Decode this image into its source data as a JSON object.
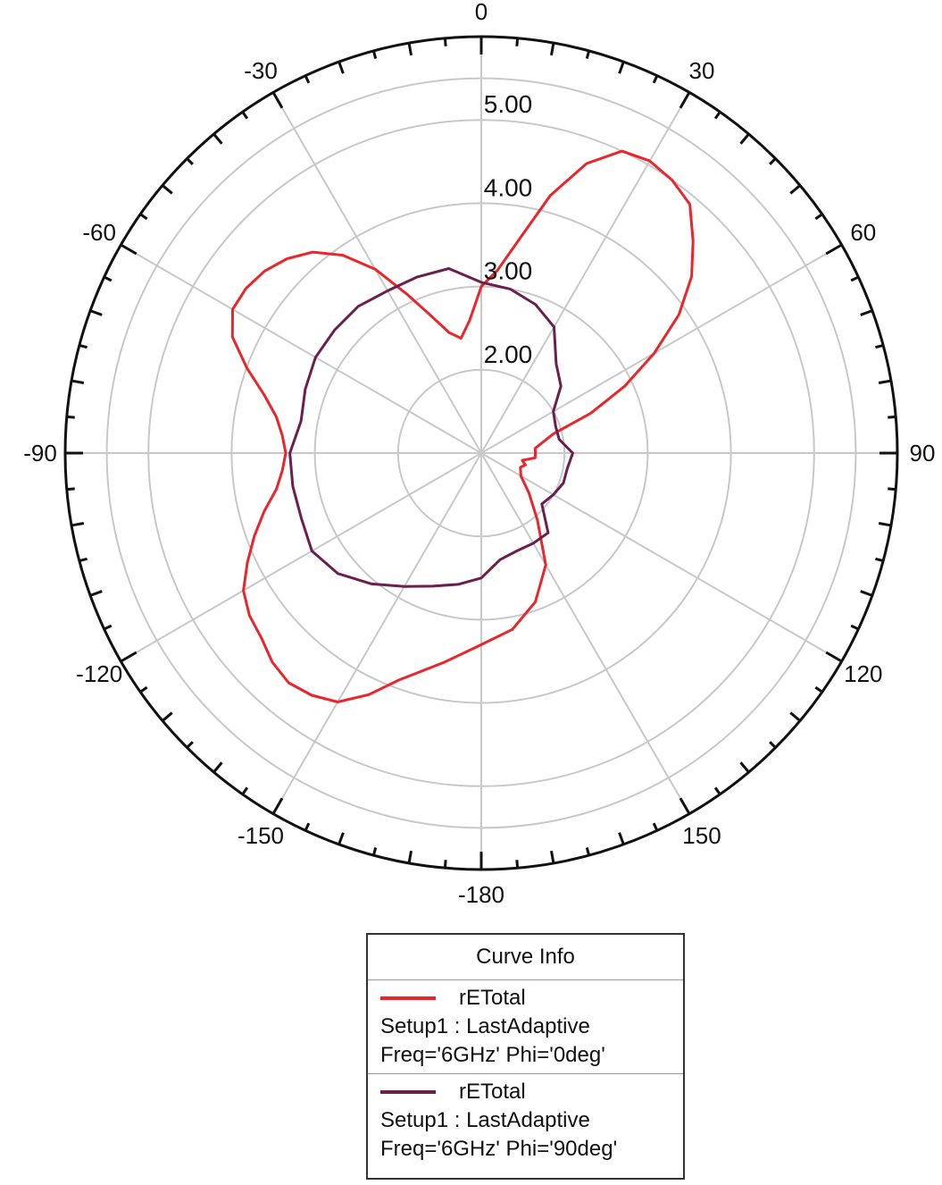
{
  "chart_data": {
    "type": "polar",
    "radial_ticks": [
      2.0,
      3.0,
      4.0,
      5.0
    ],
    "r_range": [
      1.0,
      6.0
    ],
    "angle_ticks": [
      0,
      30,
      60,
      90,
      120,
      150,
      -180,
      -150,
      -120,
      -90,
      -60,
      -30
    ],
    "grid": true,
    "legend_position": "bottom",
    "legend_title": "Curve Info",
    "series": [
      {
        "name": "rETotal",
        "setup": "Setup1 : LastAdaptive",
        "params": "Freq='6GHz' Phi='0deg'",
        "color": "#e8262b",
        "points": [
          [
            0,
            3.0
          ],
          [
            5,
            3.2
          ],
          [
            10,
            3.6
          ],
          [
            15,
            4.2
          ],
          [
            20,
            4.7
          ],
          [
            25,
            5.0
          ],
          [
            30,
            5.05
          ],
          [
            35,
            5.0
          ],
          [
            40,
            4.9
          ],
          [
            45,
            4.6
          ],
          [
            50,
            4.3
          ],
          [
            55,
            3.9
          ],
          [
            60,
            3.4
          ],
          [
            65,
            2.9
          ],
          [
            70,
            2.4
          ],
          [
            75,
            1.9
          ],
          [
            80,
            1.75
          ],
          [
            85,
            1.65
          ],
          [
            90,
            1.65
          ],
          [
            95,
            1.65
          ],
          [
            100,
            1.5
          ],
          [
            105,
            1.55
          ],
          [
            110,
            1.5
          ],
          [
            120,
            1.55
          ],
          [
            130,
            1.75
          ],
          [
            140,
            2.05
          ],
          [
            150,
            2.55
          ],
          [
            160,
            2.9
          ],
          [
            170,
            3.15
          ],
          [
            180,
            3.3
          ],
          [
            -170,
            3.55
          ],
          [
            -160,
            3.9
          ],
          [
            -155,
            4.2
          ],
          [
            -150,
            4.45
          ],
          [
            -145,
            4.55
          ],
          [
            -140,
            4.6
          ],
          [
            -135,
            4.55
          ],
          [
            -130,
            4.45
          ],
          [
            -125,
            4.4
          ],
          [
            -120,
            4.3
          ],
          [
            -115,
            4.1
          ],
          [
            -110,
            3.9
          ],
          [
            -105,
            3.7
          ],
          [
            -100,
            3.5
          ],
          [
            -95,
            3.4
          ],
          [
            -90,
            3.35
          ],
          [
            -85,
            3.4
          ],
          [
            -80,
            3.5
          ],
          [
            -75,
            3.7
          ],
          [
            -70,
            4.0
          ],
          [
            -65,
            4.3
          ],
          [
            -60,
            4.45
          ],
          [
            -55,
            4.45
          ],
          [
            -50,
            4.4
          ],
          [
            -45,
            4.3
          ],
          [
            -40,
            4.15
          ],
          [
            -35,
            3.9
          ],
          [
            -30,
            3.55
          ],
          [
            -25,
            3.1
          ],
          [
            -20,
            2.75
          ],
          [
            -15,
            2.5
          ],
          [
            -10,
            2.4
          ],
          [
            -5,
            2.6
          ],
          [
            0,
            3.0
          ]
        ]
      },
      {
        "name": "rETotal",
        "setup": "Setup1 : LastAdaptive",
        "params": "Freq='6GHz' Phi='90deg'",
        "color": "#6b1f4e",
        "points": [
          [
            0,
            3.05
          ],
          [
            10,
            3.0
          ],
          [
            20,
            2.9
          ],
          [
            30,
            2.75
          ],
          [
            40,
            2.4
          ],
          [
            50,
            2.25
          ],
          [
            60,
            2.0
          ],
          [
            70,
            1.95
          ],
          [
            80,
            1.95
          ],
          [
            90,
            2.1
          ],
          [
            100,
            2.05
          ],
          [
            110,
            2.05
          ],
          [
            120,
            2.0
          ],
          [
            130,
            1.95
          ],
          [
            140,
            2.25
          ],
          [
            150,
            2.25
          ],
          [
            160,
            2.25
          ],
          [
            170,
            2.3
          ],
          [
            180,
            2.5
          ],
          [
            -170,
            2.6
          ],
          [
            -160,
            2.7
          ],
          [
            -150,
            2.85
          ],
          [
            -140,
            3.05
          ],
          [
            -130,
            3.25
          ],
          [
            -120,
            3.35
          ],
          [
            -110,
            3.3
          ],
          [
            -100,
            3.3
          ],
          [
            -90,
            3.3
          ],
          [
            -80,
            3.2
          ],
          [
            -70,
            3.25
          ],
          [
            -60,
            3.3
          ],
          [
            -50,
            3.3
          ],
          [
            -40,
            3.3
          ],
          [
            -30,
            3.25
          ],
          [
            -20,
            3.25
          ],
          [
            -10,
            3.25
          ],
          [
            0,
            3.05
          ]
        ]
      }
    ]
  },
  "legend": {
    "title": "Curve Info",
    "entries": [
      {
        "name": "rETotal",
        "setup": "Setup1 : LastAdaptive",
        "params": "Freq='6GHz' Phi='0deg'",
        "color": "#e8262b"
      },
      {
        "name": "rETotal",
        "setup": "Setup1 : LastAdaptive",
        "params": "Freq='6GHz' Phi='90deg'",
        "color": "#6b1f4e"
      }
    ]
  }
}
